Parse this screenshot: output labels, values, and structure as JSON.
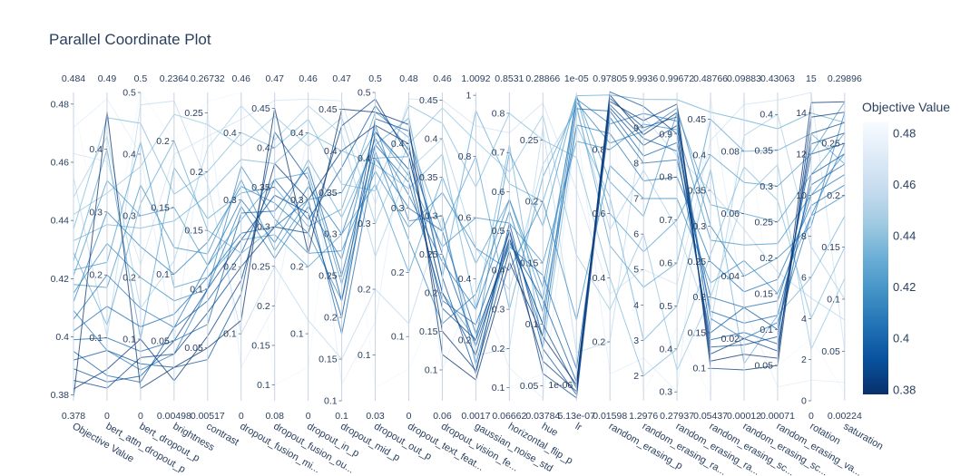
{
  "chart_data": {
    "type": "parallel_coordinates",
    "title": "Parallel Coordinate Plot",
    "colorbar": {
      "title": "Objective Value",
      "range": [
        0.378,
        0.484
      ],
      "ticks": [
        "0.38",
        "0.4",
        "0.42",
        "0.44",
        "0.46",
        "0.48"
      ],
      "colorscale": [
        "#08306b",
        "#08519c",
        "#2171b5",
        "#4292c6",
        "#6baed6",
        "#9ecae1",
        "#c6dbef",
        "#deebf7",
        "#f7fbff"
      ]
    },
    "dimensions": [
      {
        "label": "Objective Value",
        "min": 0.378,
        "max": 0.484,
        "min_label": "0.378",
        "max_label": "0.484",
        "ticks": [
          0.38,
          0.4,
          0.42,
          0.44,
          0.46,
          0.48
        ]
      },
      {
        "label": "bert_attn_dropout_p",
        "min": 0,
        "max": 0.49,
        "min_label": "0",
        "max_label": "0.49",
        "ticks": [
          0.1,
          0.2,
          0.3,
          0.4
        ]
      },
      {
        "label": "bert_dropout_p",
        "min": 0,
        "max": 0.5,
        "min_label": "0",
        "max_label": "0.5",
        "ticks": [
          0.1,
          0.2,
          0.3,
          0.4,
          0.5
        ]
      },
      {
        "label": "brightness",
        "min": 0.00498,
        "max": 0.2364,
        "min_label": "0.00498",
        "max_label": "0.2364",
        "ticks": [
          0.05,
          0.1,
          0.15,
          0.2
        ]
      },
      {
        "label": "contrast",
        "min": 0.005,
        "max": 0.26732,
        "min_label": "0.00517",
        "max_label": "0.26732",
        "ticks": [
          0.05,
          0.1,
          0.15,
          0.2,
          0.25
        ]
      },
      {
        "label": "dropout_fusion_mi...",
        "min": 0,
        "max": 0.46,
        "min_label": "0",
        "max_label": "0.46",
        "ticks": [
          0.1,
          0.2,
          0.3,
          0.4
        ]
      },
      {
        "label": "dropout_fusion_ou...",
        "min": 0.08,
        "max": 0.47,
        "min_label": "0.08",
        "max_label": "0.47",
        "ticks": [
          0.1,
          0.15,
          0.2,
          0.25,
          0.3,
          0.35,
          0.4,
          0.45
        ]
      },
      {
        "label": "dropout_in_p",
        "min": 0,
        "max": 0.46,
        "min_label": "0",
        "max_label": "0.46",
        "ticks": [
          0.1,
          0.2,
          0.3,
          0.4
        ]
      },
      {
        "label": "dropout_mid_p",
        "min": 0.1,
        "max": 0.47,
        "min_label": "0.1",
        "max_label": "0.47",
        "ticks": [
          0.1,
          0.15,
          0.2,
          0.25,
          0.3,
          0.35,
          0.4,
          0.45
        ]
      },
      {
        "label": "dropout_out_p",
        "min": 0.03,
        "max": 0.5,
        "min_label": "0.03",
        "max_label": "0.5",
        "ticks": [
          0.1,
          0.2,
          0.3,
          0.4,
          0.5
        ]
      },
      {
        "label": "dropout_text_feat...",
        "min": 0,
        "max": 0.48,
        "min_label": "0",
        "max_label": "0.48",
        "ticks": [
          0.1,
          0.2,
          0.3,
          0.4
        ]
      },
      {
        "label": "dropout_vision_fe...",
        "min": 0.06,
        "max": 0.46,
        "min_label": "0.06",
        "max_label": "0.46",
        "ticks": [
          0.1,
          0.15,
          0.2,
          0.25,
          0.3,
          0.35,
          0.4,
          0.45
        ]
      },
      {
        "label": "gaussian_noise_std",
        "min": 0.0017,
        "max": 1.0092,
        "min_label": "0.0017",
        "max_label": "1.0092",
        "ticks": [
          0.2,
          0.4,
          0.6,
          0.8,
          1
        ]
      },
      {
        "label": "horizontal_flip_p",
        "min": 0.0666,
        "max": 0.8531,
        "min_label": "0.06662",
        "max_label": "0.8531",
        "ticks": [
          0.1,
          0.2,
          0.3,
          0.4,
          0.5,
          0.6,
          0.7,
          0.8
        ]
      },
      {
        "label": "hue",
        "min": 0.03784,
        "max": 0.28866,
        "min_label": "0.03784",
        "max_label": "0.28866",
        "ticks": [
          0.05,
          0.1,
          0.15,
          0.2,
          0.25
        ]
      },
      {
        "label": "lr",
        "min": 5.13e-07,
        "max": 1e-05,
        "min_label": "5.13e-07",
        "max_label": "1e-05",
        "ticks": [],
        "tick_labels": [
          "1e-06"
        ]
      },
      {
        "label": "random_erasing_p",
        "min": 0.01598,
        "max": 0.97805,
        "min_label": "0.01598",
        "max_label": "0.97805",
        "ticks": [
          0.2,
          0.4,
          0.6,
          0.8
        ]
      },
      {
        "label": "random_erasing_ra...",
        "min": 1.2976,
        "max": 9.9936,
        "min_label": "1.2976",
        "max_label": "9.9936",
        "ticks": [
          2,
          3,
          4,
          5,
          6,
          7,
          8,
          9
        ]
      },
      {
        "label": "random_erasing_ra...",
        "min": 0.27937,
        "max": 0.99672,
        "min_label": "0.27937",
        "max_label": "0.99672",
        "ticks": [
          0.3,
          0.4,
          0.5,
          0.6,
          0.7,
          0.8,
          0.9
        ]
      },
      {
        "label": "random_erasing_sc...",
        "min": 0.05437,
        "max": 0.48766,
        "min_label": "0.05437",
        "max_label": "0.48766",
        "ticks": [
          0.1,
          0.15,
          0.2,
          0.25,
          0.3,
          0.35,
          0.4,
          0.45
        ]
      },
      {
        "label": "random_erasing_sc...",
        "min": 0.00012,
        "max": 0.09883,
        "min_label": "0.00012",
        "max_label": "0.09883",
        "ticks": [
          0.02,
          0.04,
          0.06,
          0.08
        ]
      },
      {
        "label": "random_erasing_va...",
        "min": 0.00071,
        "max": 0.43063,
        "min_label": "0.00071",
        "max_label": "0.43063",
        "ticks": [
          0.05,
          0.1,
          0.15,
          0.2,
          0.25,
          0.3,
          0.35,
          0.4
        ]
      },
      {
        "label": "rotation",
        "min": 0,
        "max": 15,
        "min_label": "0",
        "max_label": "15",
        "ticks": [
          0,
          2,
          4,
          6,
          8,
          10,
          12,
          14
        ]
      },
      {
        "label": "saturation",
        "min": 0.00224,
        "max": 0.29896,
        "min_label": "0.00224",
        "max_label": "0.29896",
        "ticks": [
          0.05,
          0.1,
          0.15,
          0.2,
          0.25
        ]
      }
    ],
    "trials": [
      [
        0.379,
        0.46,
        0.02,
        0.03,
        0.05,
        0.12,
        0.45,
        0.22,
        0.45,
        0.47,
        0.43,
        0.12,
        0.07,
        0.42,
        0.09,
        1e-06,
        0.97,
        8.8,
        0.95,
        0.11,
        0.015,
        0.06,
        14.5,
        0.29
      ],
      [
        0.382,
        0.05,
        0.1,
        0.02,
        0.06,
        0.18,
        0.38,
        0.3,
        0.4,
        0.45,
        0.4,
        0.15,
        0.1,
        0.45,
        0.07,
        8e-07,
        0.95,
        9.2,
        0.97,
        0.1,
        0.01,
        0.05,
        13.8,
        0.28
      ],
      [
        0.385,
        0.02,
        0.07,
        0.04,
        0.08,
        0.2,
        0.3,
        0.25,
        0.43,
        0.49,
        0.38,
        0.2,
        0.15,
        0.5,
        0.06,
        6e-07,
        0.93,
        8.5,
        0.92,
        0.12,
        0.02,
        0.07,
        13.0,
        0.27
      ],
      [
        0.389,
        0.03,
        0.04,
        0.05,
        0.1,
        0.24,
        0.34,
        0.28,
        0.2,
        0.44,
        0.36,
        0.18,
        0.2,
        0.48,
        0.1,
        9e-07,
        0.98,
        9.6,
        0.9,
        0.13,
        0.018,
        0.09,
        12.5,
        0.26
      ],
      [
        0.392,
        0.08,
        0.06,
        0.03,
        0.04,
        0.16,
        0.42,
        0.33,
        0.22,
        0.46,
        0.42,
        0.22,
        0.09,
        0.52,
        0.08,
        7e-07,
        0.96,
        9.0,
        0.94,
        0.15,
        0.03,
        0.1,
        12.0,
        0.25
      ],
      [
        0.395,
        0.04,
        0.03,
        0.06,
        0.09,
        0.22,
        0.36,
        0.27,
        0.38,
        0.48,
        0.39,
        0.25,
        0.18,
        0.47,
        0.12,
        1.1e-06,
        0.94,
        8.7,
        0.86,
        0.14,
        0.022,
        0.08,
        11.0,
        0.24
      ],
      [
        0.399,
        0.1,
        0.08,
        0.05,
        0.07,
        0.28,
        0.32,
        0.35,
        0.25,
        0.42,
        0.34,
        0.19,
        0.25,
        0.5,
        0.09,
        9.5e-06,
        0.92,
        8.2,
        0.88,
        0.18,
        0.025,
        0.12,
        10.5,
        0.23
      ],
      [
        0.402,
        0.15,
        0.12,
        0.07,
        0.11,
        0.25,
        0.3,
        0.3,
        0.18,
        0.4,
        0.3,
        0.28,
        0.22,
        0.46,
        0.14,
        1.5e-06,
        0.9,
        8.0,
        0.84,
        0.2,
        0.03,
        0.14,
        10.0,
        0.22
      ],
      [
        0.406,
        0.2,
        0.15,
        0.06,
        0.12,
        0.3,
        0.28,
        0.32,
        0.3,
        0.43,
        0.32,
        0.24,
        0.3,
        0.55,
        0.11,
        9e-06,
        0.85,
        7.5,
        0.8,
        0.25,
        0.035,
        0.17,
        9.5,
        0.21
      ],
      [
        0.409,
        0.08,
        0.05,
        0.04,
        0.1,
        0.29,
        0.26,
        0.29,
        0.27,
        0.45,
        0.28,
        0.3,
        0.12,
        0.48,
        0.1,
        9.8e-06,
        0.88,
        9.4,
        0.93,
        0.17,
        0.02,
        0.11,
        9.0,
        0.25
      ],
      [
        0.412,
        0.3,
        0.25,
        0.1,
        0.14,
        0.32,
        0.33,
        0.25,
        0.22,
        0.41,
        0.25,
        0.16,
        0.35,
        0.58,
        0.13,
        9.7e-06,
        0.82,
        8.9,
        0.96,
        0.3,
        0.04,
        0.2,
        8.5,
        0.28
      ],
      [
        0.415,
        0.25,
        0.2,
        0.08,
        0.1,
        0.35,
        0.31,
        0.22,
        0.28,
        0.38,
        0.27,
        0.33,
        0.5,
        0.4,
        0.2,
        3e-06,
        0.75,
        7.0,
        0.75,
        0.22,
        0.045,
        0.15,
        9.0,
        0.2
      ],
      [
        0.418,
        0.18,
        0.35,
        0.12,
        0.13,
        0.33,
        0.27,
        0.3,
        0.35,
        0.44,
        0.35,
        0.26,
        0.6,
        0.52,
        0.15,
        8.5e-06,
        0.8,
        9.1,
        0.91,
        0.28,
        0.05,
        0.22,
        10.0,
        0.24
      ],
      [
        0.421,
        0.35,
        0.3,
        0.15,
        0.12,
        0.27,
        0.36,
        0.34,
        0.24,
        0.4,
        0.38,
        0.2,
        0.2,
        0.7,
        0.18,
        9.9e-06,
        0.7,
        6.5,
        0.95,
        0.33,
        0.06,
        0.25,
        11.0,
        0.26
      ],
      [
        0.423,
        0.22,
        0.42,
        0.09,
        0.11,
        0.24,
        0.29,
        0.2,
        0.3,
        0.36,
        0.2,
        0.35,
        0.45,
        0.58,
        0.12,
        9.9e-06,
        0.6,
        5.5,
        0.7,
        0.4,
        0.07,
        0.3,
        12.0,
        0.29
      ],
      [
        0.426,
        0.4,
        0.1,
        0.18,
        0.16,
        0.31,
        0.35,
        0.26,
        0.33,
        0.47,
        0.41,
        0.28,
        0.8,
        0.3,
        0.22,
        9.6e-06,
        0.5,
        4.5,
        0.6,
        0.45,
        0.08,
        0.35,
        13.0,
        0.23
      ],
      [
        0.429,
        0.12,
        0.32,
        0.2,
        0.15,
        0.22,
        0.3,
        0.36,
        0.32,
        0.42,
        0.44,
        0.22,
        0.95,
        0.62,
        0.2,
        9.9e-06,
        0.97,
        9.8,
        0.98,
        0.46,
        0.09,
        0.38,
        14.0,
        0.27
      ],
      [
        0.433,
        0.28,
        0.28,
        0.14,
        0.18,
        0.36,
        0.38,
        0.4,
        0.4,
        0.39,
        0.33,
        0.38,
        0.3,
        0.72,
        0.08,
        9e-06,
        0.65,
        3.0,
        0.5,
        0.38,
        0.012,
        0.12,
        6.0,
        0.18
      ],
      [
        0.437,
        0.45,
        0.45,
        0.16,
        0.2,
        0.4,
        0.4,
        0.42,
        0.36,
        0.35,
        0.46,
        0.42,
        0.7,
        0.8,
        0.25,
        8e-06,
        0.4,
        2.0,
        0.4,
        0.26,
        0.075,
        0.28,
        4.0,
        0.15
      ],
      [
        0.442,
        0.33,
        0.38,
        0.22,
        0.24,
        0.38,
        0.44,
        0.38,
        0.44,
        0.3,
        0.4,
        0.44,
        0.85,
        0.65,
        0.27,
        5e-06,
        0.3,
        6.0,
        0.35,
        0.2,
        0.065,
        0.33,
        2.5,
        0.12
      ],
      [
        0.448,
        0.42,
        0.15,
        0.11,
        0.22,
        0.44,
        0.41,
        0.44,
        0.42,
        0.25,
        0.36,
        0.4,
        0.5,
        0.35,
        0.23,
        9.5e-06,
        0.55,
        7.8,
        0.68,
        0.16,
        0.085,
        0.4,
        7.5,
        0.1
      ],
      [
        0.455,
        0.1,
        0.48,
        0.23,
        0.19,
        0.1,
        0.25,
        0.12,
        0.15,
        0.2,
        0.12,
        0.3,
        0.15,
        0.2,
        0.26,
        2e-06,
        0.2,
        9.3,
        0.85,
        0.35,
        0.055,
        0.18,
        5.0,
        0.08
      ],
      [
        0.463,
        0.38,
        0.22,
        0.19,
        0.23,
        0.42,
        0.46,
        0.45,
        0.46,
        0.33,
        0.47,
        0.45,
        0.9,
        0.75,
        0.28,
        7e-06,
        0.35,
        5.0,
        0.55,
        0.42,
        0.095,
        0.42,
        15.0,
        0.05
      ],
      [
        0.472,
        0.48,
        0.4,
        0.05,
        0.25,
        0.05,
        0.2,
        0.4,
        0.12,
        0.15,
        0.45,
        0.1,
        0.4,
        0.15,
        0.04,
        9e-06,
        0.1,
        2.5,
        0.3,
        0.48,
        0.03,
        0.02,
        1.0,
        0.02
      ],
      [
        0.481,
        0.2,
        0.5,
        0.2,
        0.26,
        0.46,
        0.1,
        0.05,
        0.45,
        0.05,
        0.05,
        0.2,
        1.0,
        0.1,
        0.06,
        6e-07,
        0.95,
        1.5,
        0.45,
        0.06,
        0.098,
        0.05,
        3.0,
        0.01
      ]
    ]
  }
}
